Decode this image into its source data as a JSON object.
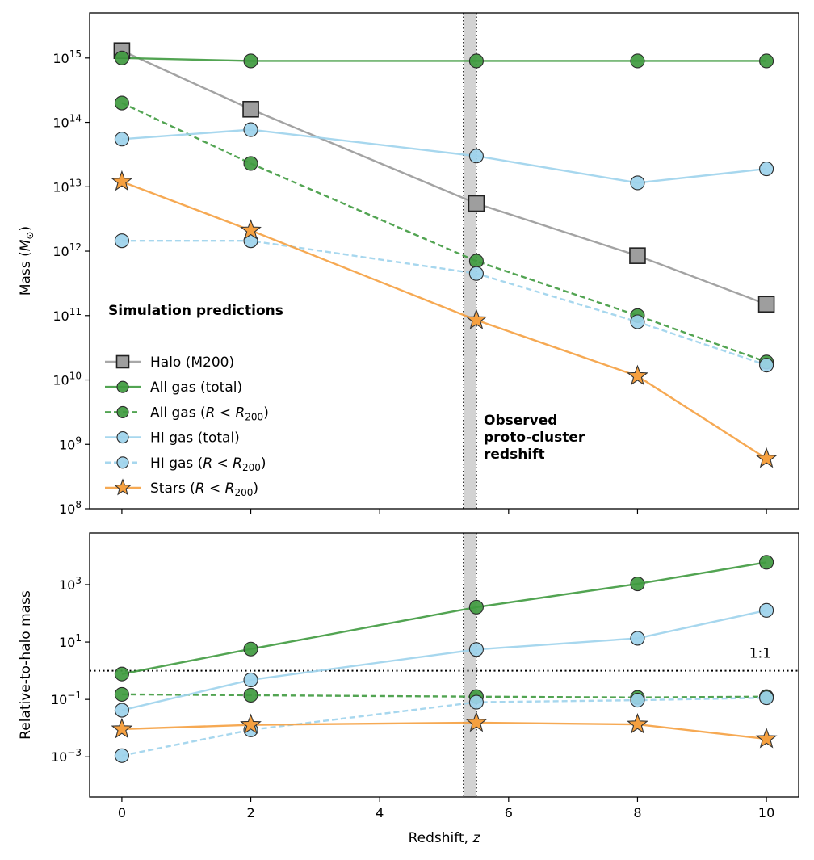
{
  "chart_data": [
    {
      "type": "line",
      "panel": "top",
      "ylabel": "Mass (M⊙)",
      "yscale": "log",
      "ylim_exp": [
        8,
        15.7
      ],
      "xlim": [
        -0.5,
        10.5
      ],
      "x_ticks": [
        0,
        2,
        4,
        6,
        8,
        10
      ],
      "y_ticks": [
        {
          "exp": 8,
          "label": "10",
          "sup": "8"
        },
        {
          "exp": 9,
          "label": "10",
          "sup": "9"
        },
        {
          "exp": 10,
          "label": "10",
          "sup": "10"
        },
        {
          "exp": 11,
          "label": "10",
          "sup": "11"
        },
        {
          "exp": 12,
          "label": "10",
          "sup": "12"
        },
        {
          "exp": 13,
          "label": "10",
          "sup": "13"
        },
        {
          "exp": 14,
          "label": "10",
          "sup": "14"
        },
        {
          "exp": 15,
          "label": "10",
          "sup": "15"
        }
      ],
      "annotation_title": "Simulation predictions",
      "band_annotation": [
        "Observed",
        "proto-cluster",
        "redshift"
      ],
      "band": {
        "x_from": 5.3,
        "x_to": 5.5
      },
      "series": [
        {
          "name": "Halo (M200)",
          "color": "#9e9e9e",
          "dash": false,
          "marker": "square",
          "x": [
            0,
            2,
            5.5,
            8,
            10
          ],
          "y": [
            1300000000000000.0,
            160000000000000.0,
            5500000000000.0,
            850000000000.0,
            150000000000.0
          ]
        },
        {
          "name": "All gas (total)",
          "color": "#3f9a3f",
          "dash": false,
          "marker": "circle",
          "x": [
            0,
            2,
            5.5,
            8,
            10
          ],
          "y": [
            1000000000000000.0,
            900000000000000.0,
            900000000000000.0,
            900000000000000.0,
            900000000000000.0
          ]
        },
        {
          "name": "All gas (R < R200)",
          "color": "#3f9a3f",
          "dash": true,
          "marker": "circle",
          "x": [
            0,
            2,
            5.5,
            8,
            10
          ],
          "y": [
            200000000000000.0,
            23000000000000.0,
            700000000000.0,
            100000000000.0,
            19000000000.0
          ]
        },
        {
          "name": "HI gas (total)",
          "color": "#9dd3ec",
          "dash": false,
          "marker": "circle",
          "x": [
            0,
            2,
            5.5,
            8,
            10
          ],
          "y": [
            55000000000000.0,
            77000000000000.0,
            30000000000000.0,
            11500000000000.0,
            19000000000000.0
          ]
        },
        {
          "name": "HI gas (R < R200)",
          "color": "#9dd3ec",
          "dash": true,
          "marker": "circle",
          "x": [
            0,
            2,
            5.5,
            8,
            10
          ],
          "y": [
            1450000000000.0,
            1450000000000.0,
            450000000000.0,
            80000000000.0,
            17000000000.0
          ]
        },
        {
          "name": "Stars (R < R200)",
          "color": "#f5a040",
          "dash": false,
          "marker": "star",
          "x": [
            0,
            2,
            5.5,
            8,
            10
          ],
          "y": [
            12000000000000.0,
            2100000000000.0,
            85000000000.0,
            11500000000.0,
            600000000.0
          ]
        }
      ]
    },
    {
      "type": "line",
      "panel": "bottom",
      "ylabel": "Relative-to-halo mass",
      "xlabel": "Redshift, z",
      "yscale": "log",
      "ylim_exp": [
        -4.4,
        4.8
      ],
      "xlim": [
        -0.5,
        10.5
      ],
      "x_ticks": [
        0,
        2,
        4,
        6,
        8,
        10
      ],
      "y_ticks": [
        {
          "exp": -3,
          "label": "10",
          "sup": "−3"
        },
        {
          "exp": -1,
          "label": "10",
          "sup": "−1"
        },
        {
          "exp": 1,
          "label": "10",
          "sup": "1"
        },
        {
          "exp": 3,
          "label": "10",
          "sup": "3"
        }
      ],
      "reference_line": {
        "y": 1,
        "label": "1:1"
      },
      "band": {
        "x_from": 5.3,
        "x_to": 5.5
      },
      "series": [
        {
          "name": "All gas (total)",
          "color": "#3f9a3f",
          "dash": false,
          "marker": "circle",
          "x": [
            0,
            2,
            5.5,
            8,
            10
          ],
          "y": [
            0.77,
            5.7,
            164,
            1060,
            6000
          ]
        },
        {
          "name": "All gas (R < R200)",
          "color": "#3f9a3f",
          "dash": true,
          "marker": "circle",
          "x": [
            0,
            2,
            5.5,
            8,
            10
          ],
          "y": [
            0.15,
            0.14,
            0.125,
            0.117,
            0.125
          ]
        },
        {
          "name": "HI gas (total)",
          "color": "#9dd3ec",
          "dash": false,
          "marker": "circle",
          "x": [
            0,
            2,
            5.5,
            8,
            10
          ],
          "y": [
            0.042,
            0.48,
            5.5,
            13.5,
            127
          ]
        },
        {
          "name": "HI gas (R < R200)",
          "color": "#9dd3ec",
          "dash": true,
          "marker": "circle",
          "x": [
            0,
            2,
            5.5,
            8,
            10
          ],
          "y": [
            0.0011,
            0.0087,
            0.08,
            0.094,
            0.114
          ]
        },
        {
          "name": "Stars (R < R200)",
          "color": "#f5a040",
          "dash": false,
          "marker": "star",
          "x": [
            0,
            2,
            5.5,
            8,
            10
          ],
          "y": [
            0.0092,
            0.013,
            0.0155,
            0.0135,
            0.0042
          ]
        }
      ]
    }
  ],
  "legend": [
    {
      "label": "Halo (M200)",
      "text": "Halo (M200)",
      "color": "#9e9e9e",
      "dash": false,
      "marker": "square"
    },
    {
      "label": "All gas (total)",
      "text": "All gas (total)",
      "color": "#3f9a3f",
      "dash": false,
      "marker": "circle"
    },
    {
      "label": "All gas (R < R200)",
      "text": "All gas (",
      "math": "R < R",
      "sub": "200",
      "close": ")",
      "color": "#3f9a3f",
      "dash": true,
      "marker": "circle"
    },
    {
      "label": "HI gas (total)",
      "text": "HI gas (total)",
      "color": "#9dd3ec",
      "dash": false,
      "marker": "circle"
    },
    {
      "label": "HI gas (R < R200)",
      "text": "HI gas (",
      "math": "R < R",
      "sub": "200",
      "close": ")",
      "color": "#9dd3ec",
      "dash": true,
      "marker": "circle"
    },
    {
      "label": "Stars (R < R200)",
      "text": "Stars (",
      "math": "R < R",
      "sub": "200",
      "close": ")",
      "color": "#f5a040",
      "dash": false,
      "marker": "star"
    }
  ]
}
